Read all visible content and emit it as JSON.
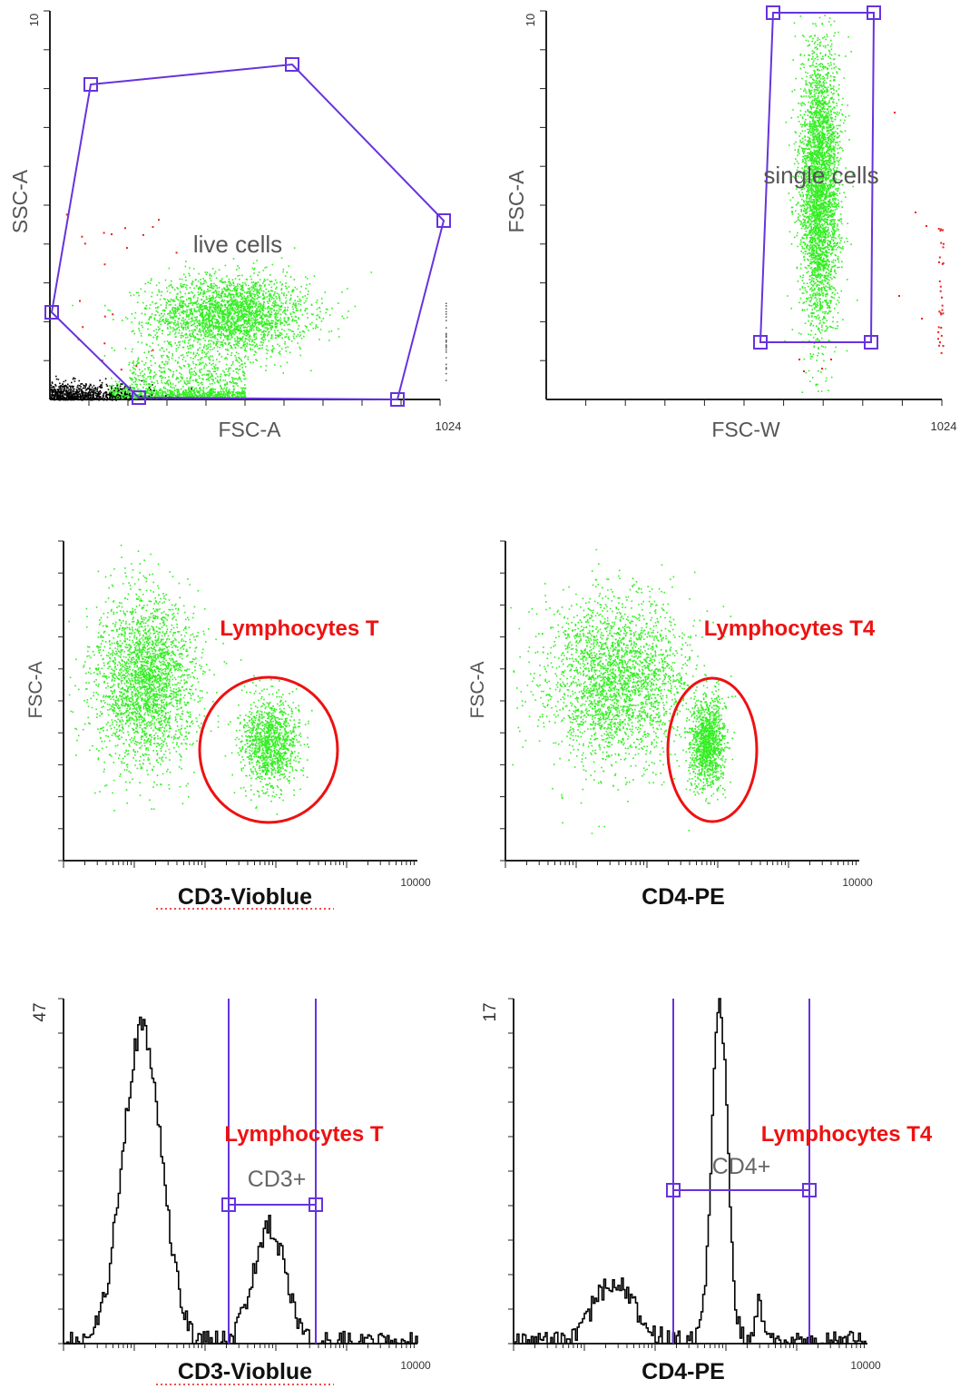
{
  "colors": {
    "events": "#33ee22",
    "debris": "#000000",
    "excluded": "#ee2222",
    "gate": "#6633dd",
    "annotation": "#ee1111",
    "axis": "#222222",
    "histogram": "#000000"
  },
  "chart_data": [
    {
      "id": "p1",
      "type": "scatter",
      "xlabel": "FSC-A",
      "ylabel": "SSC-A",
      "x_max_label": "1024",
      "y_max_label": "10",
      "gate": {
        "type": "polygon",
        "label": "live cells"
      },
      "populations": [
        {
          "name": "",
          "x_center": 0.46,
          "y_center": 0.22,
          "spread_x": 0.1,
          "spread_y": 0.05
        }
      ]
    },
    {
      "id": "p2",
      "type": "scatter",
      "xlabel": "FSC-W",
      "ylabel": "FSC-A",
      "x_max_label": "1024",
      "y_max_label": "10",
      "gate": {
        "type": "rectangle",
        "label": "single cells"
      },
      "populations": [
        {
          "name": "",
          "x_center": 0.69,
          "y_center": 0.55,
          "spread_x": 0.025,
          "spread_y": 0.18
        }
      ]
    },
    {
      "id": "p3",
      "type": "scatter",
      "xlabel": "CD3-Vioblue",
      "ylabel": "FSC-A",
      "x_max_label": "10000",
      "gate": {
        "type": "ellipse"
      },
      "annotation": "Lymphocytes T",
      "populations": [
        {
          "name": "",
          "x_center": 0.23,
          "y_center": 0.57,
          "spread_x": 0.07,
          "spread_y": 0.13
        },
        {
          "name": "Lymphocytes T",
          "x_center": 0.58,
          "y_center": 0.37,
          "spread_x": 0.04,
          "spread_y": 0.07
        }
      ]
    },
    {
      "id": "p4",
      "type": "scatter",
      "xlabel": "CD4-PE",
      "ylabel": "FSC-A",
      "x_max_label": "10000",
      "gate": {
        "type": "ellipse"
      },
      "annotation": "Lymphocytes T4",
      "populations": [
        {
          "name": "",
          "x_center": 0.31,
          "y_center": 0.57,
          "spread_x": 0.1,
          "spread_y": 0.13
        },
        {
          "name": "Lymphocytes T4",
          "x_center": 0.57,
          "y_center": 0.37,
          "spread_x": 0.025,
          "spread_y": 0.07
        }
      ]
    },
    {
      "id": "p5",
      "type": "area",
      "xlabel": "CD3-Vioblue",
      "x_max_label": "10000",
      "y_max_label": "47",
      "y_max": 47,
      "gate": {
        "type": "range",
        "label": "CD3+"
      },
      "annotation": "Lymphocytes T",
      "peaks": [
        {
          "center": 0.22,
          "width": 0.055,
          "height": 43
        },
        {
          "center": 0.58,
          "width": 0.045,
          "height": 16
        }
      ]
    },
    {
      "id": "p6",
      "type": "area",
      "xlabel": "CD4-PE",
      "x_max_label": "10000",
      "y_max_label": "17",
      "y_max": 17,
      "gate": {
        "type": "range",
        "label": "CD4+"
      },
      "annotation": "Lymphocytes T4",
      "peaks": [
        {
          "center": 0.58,
          "width": 0.022,
          "height": 17
        },
        {
          "center": 0.28,
          "width": 0.06,
          "height": 3
        },
        {
          "center": 0.69,
          "width": 0.012,
          "height": 2
        }
      ]
    }
  ]
}
